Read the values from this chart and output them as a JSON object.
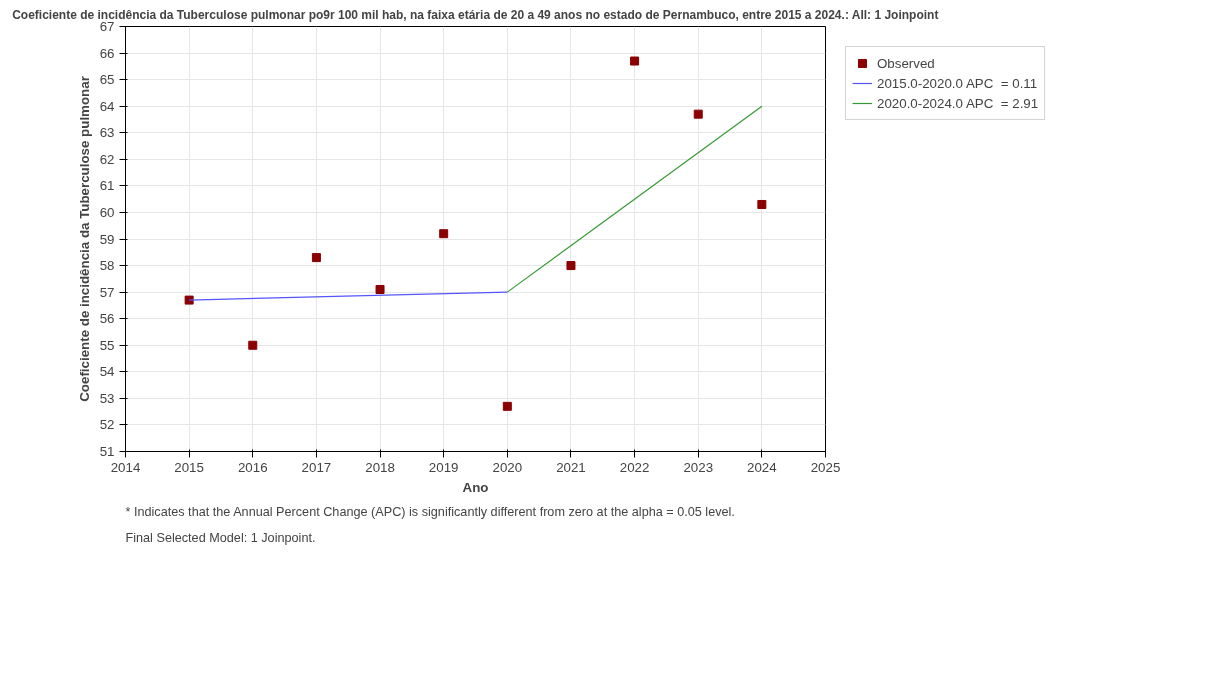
{
  "chart_data": {
    "type": "scatter",
    "title": "Coeficiente de incidência da Tuberculose pulmonar po9r 100 mil hab, na faixa etária de 20 a 49 anos no estado de Pernambuco, entre 2015 a 2024.: All: 1 Joinpoint",
    "xlabel": "Ano",
    "ylabel": "Coeficiente de incidência da Tuberculose pulmonar",
    "xlim": [
      2014,
      2025
    ],
    "xticks": [
      2014,
      2015,
      2016,
      2017,
      2018,
      2019,
      2020,
      2021,
      2022,
      2023,
      2024,
      2025
    ],
    "ylim": [
      51,
      67
    ],
    "yticks": [
      51,
      52,
      53,
      54,
      55,
      56,
      57,
      58,
      59,
      60,
      61,
      62,
      63,
      64,
      65,
      66,
      67
    ],
    "grid": true,
    "legend": "right",
    "series": [
      {
        "name": "Observed",
        "marker": "square",
        "color": "#8b0000",
        "x": [
          2015,
          2016,
          2017,
          2018,
          2019,
          2020,
          2021,
          2022,
          2023,
          2024
        ],
        "values": [
          56.7,
          55.0,
          58.3,
          57.1,
          59.2,
          52.7,
          58.0,
          65.7,
          63.7,
          60.3
        ]
      },
      {
        "name": "2015.0-2020.0 APC  = 0.11",
        "type": "line",
        "color": "#5555ff",
        "x": [
          2015,
          2020
        ],
        "values": [
          56.7,
          57.0
        ]
      },
      {
        "name": "2020.0-2024.0 APC  = 2.91",
        "type": "line",
        "color": "#339933",
        "x": [
          2020,
          2024
        ],
        "values": [
          57.0,
          64.0
        ]
      }
    ],
    "annotations": [
      "* Indicates that the Annual Percent Change (APC) is significantly different from zero at the alpha = 0.05 level.",
      "Final Selected Model: 1 Joinpoint."
    ]
  }
}
